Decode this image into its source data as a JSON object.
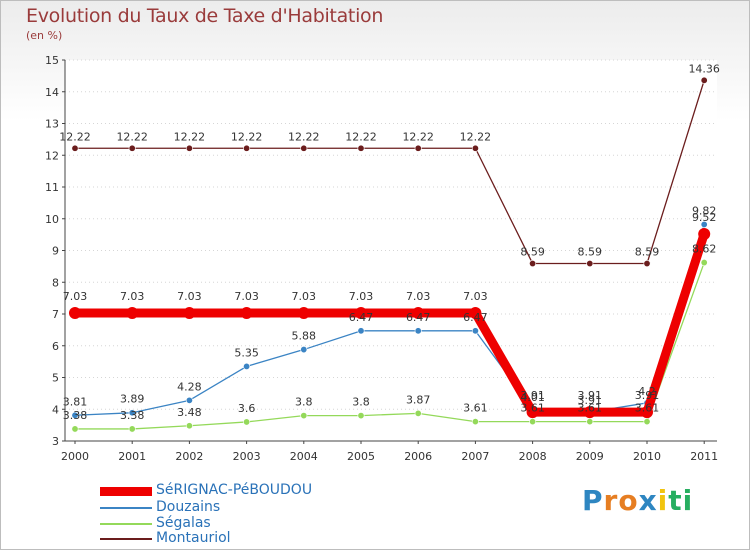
{
  "chart_data": {
    "type": "line",
    "title": "Evolution du Taux de Taxe d'Habitation",
    "subtitle": "(en %)",
    "xlabel": "",
    "ylabel": "(en %)",
    "ylim": [
      3,
      15
    ],
    "yticks": [
      3,
      4,
      5,
      6,
      7,
      8,
      9,
      10,
      11,
      12,
      13,
      14,
      15
    ],
    "categories": [
      "2000",
      "2001",
      "2002",
      "2003",
      "2004",
      "2005",
      "2006",
      "2007",
      "2008",
      "2009",
      "2010",
      "2011"
    ],
    "legend_position": "bottom-left",
    "series": [
      {
        "name": "Montauriol",
        "color": "#6b1d1d",
        "values": [
          12.22,
          12.22,
          12.22,
          12.22,
          12.22,
          12.22,
          12.22,
          12.22,
          8.59,
          8.59,
          8.59,
          14.36
        ],
        "labels": [
          "12.22",
          "12.22",
          "12.22",
          "12.22",
          "12.22",
          "12.22",
          "12.22",
          "12.22",
          "8.59",
          "8.59",
          "8.59",
          "14.36"
        ]
      },
      {
        "name": "Ségalas",
        "color": "#94d95a",
        "values": [
          3.38,
          3.38,
          3.48,
          3.6,
          3.8,
          3.8,
          3.87,
          3.61,
          3.61,
          3.61,
          3.61,
          8.62
        ],
        "labels": [
          "3.38",
          "3.38",
          "3.48",
          "3.6",
          "3.8",
          "3.8",
          "3.87",
          "3.61",
          "3.61",
          "3.61",
          "3.61",
          "8.62"
        ]
      },
      {
        "name": "Douzains",
        "color": "#3b84c4",
        "values": [
          3.81,
          3.89,
          4.28,
          5.35,
          5.88,
          6.47,
          6.47,
          6.47,
          4.01,
          3.91,
          4.2,
          9.82
        ],
        "labels": [
          "3.81",
          "3.89",
          "4.28",
          "5.35",
          "5.88",
          "6.47",
          "6.47",
          "6.47",
          "4.01",
          "3.91",
          "4.2",
          "9.82"
        ]
      },
      {
        "name": "SéRIGNAC-PéBOUDOU",
        "color": "#ee0000",
        "values": [
          7.03,
          7.03,
          7.03,
          7.03,
          7.03,
          7.03,
          7.03,
          7.03,
          3.91,
          3.91,
          3.91,
          9.52
        ],
        "labels": [
          "7.03",
          "7.03",
          "7.03",
          "7.03",
          "7.03",
          "7.03",
          "7.03",
          "7.03",
          "3.91",
          "3.91",
          "3.91",
          "9.52"
        ]
      }
    ],
    "legend_order": [
      "SéRIGNAC-PéBOUDOU",
      "Douzains",
      "Ségalas",
      "Montauriol"
    ]
  },
  "legend": {
    "items": [
      {
        "label": "SéRIGNAC-PéBOUDOU",
        "color": "#ee0000"
      },
      {
        "label": "Douzains",
        "color": "#3b84c4"
      },
      {
        "label": "Ségalas",
        "color": "#94d95a"
      },
      {
        "label": "Montauriol",
        "color": "#6b1d1d"
      }
    ]
  },
  "logo": {
    "letters": [
      "P",
      "r",
      "o",
      "x",
      "i",
      "t",
      "i"
    ],
    "colors": [
      "#2e86c1",
      "#e67e22",
      "#e67e22",
      "#2e86c1",
      "#f1c40f",
      "#27ae60",
      "#27ae60"
    ]
  }
}
